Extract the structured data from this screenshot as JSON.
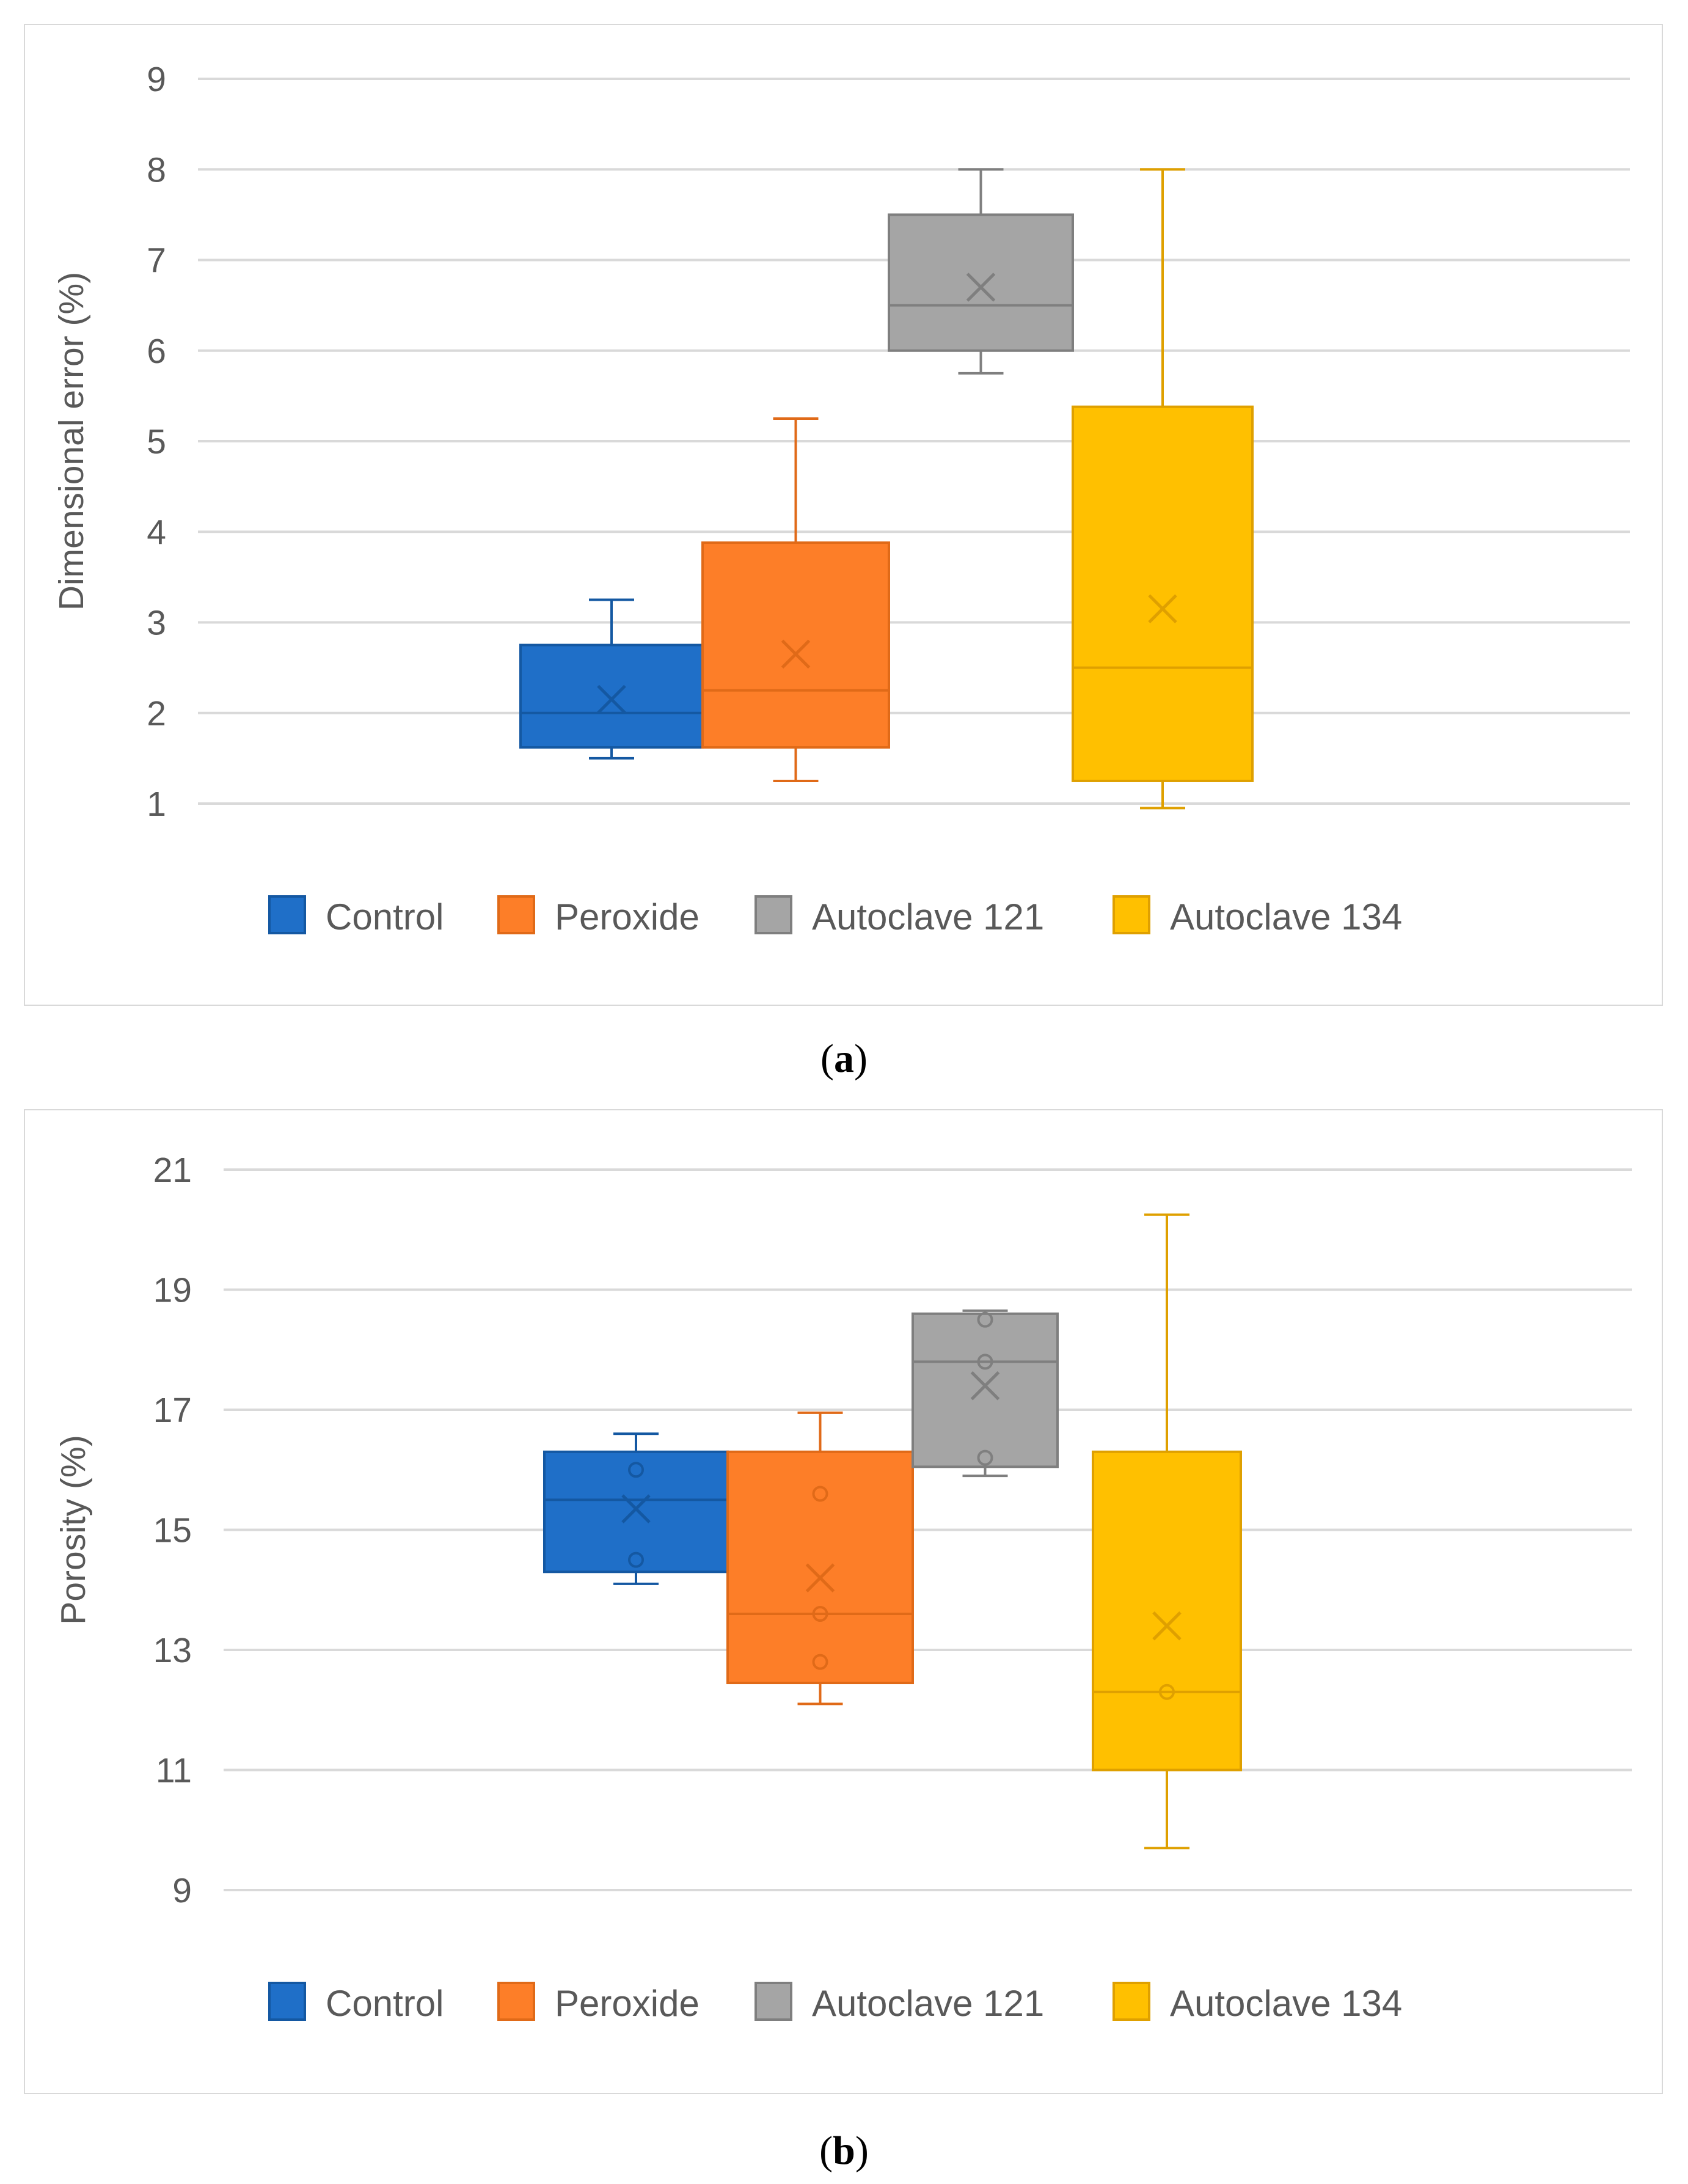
{
  "chart_data": [
    {
      "type": "box",
      "panel_label": "a",
      "title": "",
      "xlabel": "",
      "ylabel": "Dimensional error (%)",
      "ylim": [
        1,
        9
      ],
      "yticks": [
        1,
        2,
        3,
        4,
        5,
        6,
        7,
        8,
        9
      ],
      "grid": true,
      "legend_position": "bottom",
      "series": [
        {
          "name": "Control",
          "color": "#1f6fc8",
          "stroke": "#1458a2",
          "min": 1.5,
          "q1": 1.62,
          "median": 2.0,
          "q3": 2.75,
          "max": 3.25,
          "mean": 2.15,
          "points": []
        },
        {
          "name": "Peroxide",
          "color": "#fd7e28",
          "stroke": "#e06a18",
          "min": 1.25,
          "q1": 1.62,
          "median": 2.25,
          "q3": 3.88,
          "max": 5.25,
          "mean": 2.65,
          "points": []
        },
        {
          "name": "Autoclave 121",
          "color": "#a5a5a5",
          "stroke": "#7f7f7f",
          "min": 5.75,
          "q1": 6.0,
          "median": 6.5,
          "q3": 7.5,
          "max": 8.0,
          "mean": 6.7,
          "points": []
        },
        {
          "name": "Autoclave 134",
          "color": "#ffc000",
          "stroke": "#dfa000",
          "min": 0.95,
          "q1": 1.25,
          "median": 2.5,
          "q3": 5.38,
          "max": 8.0,
          "mean": 3.15,
          "points": []
        }
      ]
    },
    {
      "type": "box",
      "panel_label": "b",
      "title": "",
      "xlabel": "",
      "ylabel": "Porosity (%)",
      "ylim": [
        9,
        21
      ],
      "yticks": [
        9,
        11,
        13,
        15,
        17,
        19,
        21
      ],
      "grid": true,
      "legend_position": "bottom",
      "series": [
        {
          "name": "Control",
          "color": "#1f6fc8",
          "stroke": "#1458a2",
          "min": 14.1,
          "q1": 14.3,
          "median": 15.5,
          "q3": 16.3,
          "max": 16.6,
          "mean": 15.35,
          "points": [
            16.0,
            14.5
          ]
        },
        {
          "name": "Peroxide",
          "color": "#fd7e28",
          "stroke": "#e06a18",
          "min": 12.1,
          "q1": 12.45,
          "median": 13.6,
          "q3": 16.3,
          "max": 16.95,
          "mean": 14.2,
          "points": [
            15.6,
            13.6,
            12.8
          ]
        },
        {
          "name": "Autoclave 121",
          "color": "#a5a5a5",
          "stroke": "#7f7f7f",
          "min": 15.9,
          "q1": 16.05,
          "median": 17.8,
          "q3": 18.6,
          "max": 18.65,
          "mean": 17.4,
          "points": [
            18.5,
            17.8,
            16.2
          ]
        },
        {
          "name": "Autoclave 134",
          "color": "#ffc000",
          "stroke": "#dfa000",
          "min": 9.7,
          "q1": 11.0,
          "median": 12.3,
          "q3": 16.3,
          "max": 20.25,
          "mean": 13.4,
          "points": [
            12.3
          ]
        }
      ]
    }
  ]
}
